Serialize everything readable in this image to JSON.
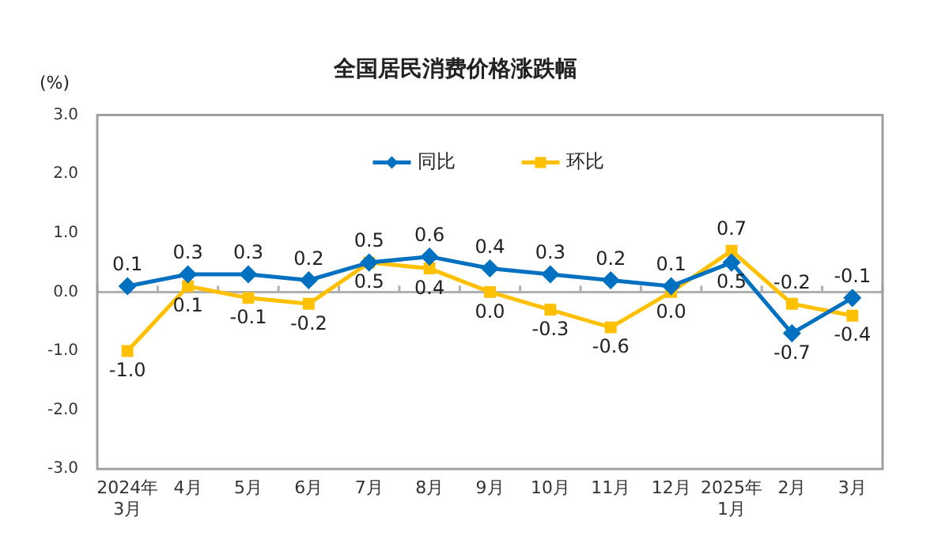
{
  "chart_data": {
    "type": "line",
    "title": "全国居民消费价格涨跌幅",
    "ylabel": "(%)",
    "categories": [
      "2024年\n3月",
      "4月",
      "5月",
      "6月",
      "7月",
      "8月",
      "9月",
      "10月",
      "11月",
      "12月",
      "2025年\n1月",
      "2月",
      "3月"
    ],
    "series": [
      {
        "name": "同比",
        "color": "#0070c0",
        "marker": "diamond",
        "values": [
          0.1,
          0.3,
          0.3,
          0.2,
          0.5,
          0.6,
          0.4,
          0.3,
          0.2,
          0.1,
          0.5,
          -0.7,
          -0.1
        ],
        "value_labels": [
          "0.1",
          "0.3",
          "0.3",
          "0.2",
          "0.5",
          "0.6",
          "0.4",
          "0.3",
          "0.2",
          "0.1",
          "0.5",
          "-0.7",
          "-0.1"
        ]
      },
      {
        "name": "环比",
        "color": "#ffc000",
        "marker": "square",
        "values": [
          -1.0,
          0.1,
          -0.1,
          -0.2,
          0.5,
          0.4,
          0.0,
          -0.3,
          -0.6,
          0.0,
          0.7,
          -0.2,
          -0.4
        ],
        "value_labels": [
          "-1.0",
          "0.1",
          "-0.1",
          "-0.2",
          "0.5",
          "0.4",
          "0.0",
          "-0.3",
          "-0.6",
          "0.0",
          "0.7",
          "-0.2",
          "-0.4"
        ]
      }
    ],
    "ylim": [
      -3,
      3
    ],
    "yticks": [
      {
        "value": -3,
        "label": "-3.0"
      },
      {
        "value": -2,
        "label": "-2.0"
      },
      {
        "value": -1,
        "label": "-1.0"
      },
      {
        "value": 0,
        "label": "0.0"
      },
      {
        "value": 1,
        "label": "1.0"
      },
      {
        "value": 2,
        "label": "2.0"
      },
      {
        "value": 3,
        "label": "3.0"
      }
    ],
    "ref_lines": [
      {
        "axis": "y",
        "value": 0,
        "color": "#b0b0b0"
      }
    ],
    "grid": false,
    "legend": "top"
  }
}
